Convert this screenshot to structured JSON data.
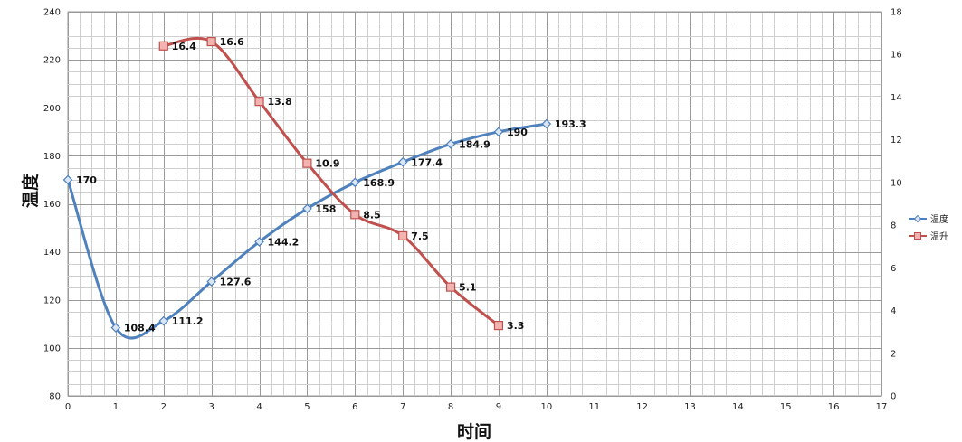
{
  "chart_data": {
    "type": "line",
    "title": "",
    "xlabel": "时间",
    "ylabel": "温度",
    "xlim": [
      0,
      17
    ],
    "ylim": [
      80,
      240
    ],
    "y2lim": [
      0,
      18
    ],
    "x_ticks": [
      0,
      1,
      2,
      3,
      4,
      5,
      6,
      7,
      8,
      9,
      10,
      11,
      12,
      13,
      14,
      15,
      16,
      17
    ],
    "y_ticks": [
      80,
      100,
      120,
      140,
      160,
      180,
      200,
      220,
      240
    ],
    "y2_ticks": [
      0,
      2,
      4,
      6,
      8,
      10,
      12,
      14,
      16,
      18
    ],
    "grid": true,
    "smooth": true,
    "legend_position": "right",
    "series": [
      {
        "name": "温度",
        "axis": "left",
        "color": "#4f81bd",
        "marker": "diamond",
        "x": [
          0,
          1,
          2,
          3,
          4,
          5,
          6,
          7,
          8,
          9,
          10
        ],
        "values": [
          170,
          108.4,
          111.2,
          127.6,
          144.2,
          158,
          168.9,
          177.4,
          184.9,
          190,
          193.3
        ],
        "labels": [
          "170",
          "108.4",
          "111.2",
          "127.6",
          "144.2",
          "158",
          "168.9",
          "177.4",
          "184.9",
          "190",
          "193.3"
        ]
      },
      {
        "name": "温升",
        "axis": "right",
        "color": "#c0504d",
        "marker": "square",
        "x": [
          2,
          3,
          4,
          5,
          6,
          7,
          8,
          9
        ],
        "values": [
          16.4,
          16.6,
          13.8,
          10.9,
          8.5,
          7.5,
          5.1,
          3.3
        ],
        "labels": [
          "16.4",
          "16.6",
          "13.8",
          "10.9",
          "8.5",
          "7.5",
          "5.1",
          "3.3"
        ]
      }
    ]
  }
}
